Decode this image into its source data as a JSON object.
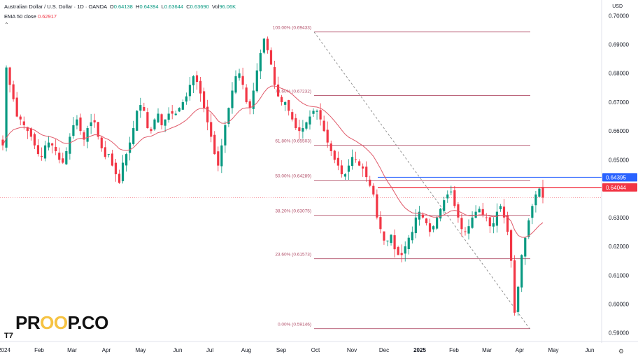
{
  "header": {
    "symbol": "Australian Dollar / U.S. Dollar · 1D · OANDA",
    "open_label": "O",
    "open": "0.64138",
    "high_label": "H",
    "high": "0.64394",
    "low_label": "L",
    "low": "0.63644",
    "close_label": "C",
    "close": "0.63690",
    "vol_label": "Vol",
    "vol": "96.06K",
    "ema_label": "EMA 50 close",
    "ema_value": "0.62917"
  },
  "currency": "USD",
  "logo": {
    "left": "PR",
    "oo": "OO",
    "right": "P.CO"
  },
  "tradingview_badge": "T7",
  "colors": {
    "up": "#089981",
    "down": "#f23645",
    "ema": "#e05a6a",
    "fib": "#b2506a",
    "resistance_red": "#f23645",
    "resistance_blue": "#2962ff"
  },
  "chart_data": {
    "type": "candlestick",
    "title": "Australian Dollar / U.S. Dollar · 1D · OANDA",
    "ylim": [
      0.5875,
      0.7025
    ],
    "y_ticks": [
      "0.70000",
      "0.69000",
      "0.68000",
      "0.67000",
      "0.66000",
      "0.65000",
      "0.64000",
      "0.63000",
      "0.62000",
      "0.61000",
      "0.60000",
      "0.59000"
    ],
    "x_labels": [
      "2024",
      "Feb",
      "Mar",
      "Apr",
      "May",
      "Jun",
      "Jul",
      "Aug",
      "Sep",
      "Oct",
      "Nov",
      "Dec",
      "2025",
      "Feb",
      "Mar",
      "Apr",
      "May",
      "Jun"
    ],
    "bold_x_labels": [
      "2025"
    ],
    "x_label_order": [
      0,
      1,
      2,
      3,
      4,
      5,
      6,
      7,
      8,
      9,
      10,
      11,
      12,
      13,
      14,
      15,
      16,
      17
    ],
    "fib_levels": [
      {
        "label": "100.00% (0.69433)",
        "value": 0.69433
      },
      {
        "label": "78.60% (0.67232)",
        "value": 0.67232
      },
      {
        "label": "61.80% (0.65503)",
        "value": 0.65503
      },
      {
        "label": "50.00% (0.64289)",
        "value": 0.64289
      },
      {
        "label": "38.20% (0.63075)",
        "value": 0.63075
      },
      {
        "label": "23.60% (0.61573)",
        "value": 0.61573
      },
      {
        "label": "0.00% (0.59146)",
        "value": 0.59146
      }
    ],
    "price_tags": [
      {
        "label": "0.64395",
        "value": 0.64395,
        "style": "blue"
      },
      {
        "label": "0.64044",
        "value": 0.64044,
        "style": "red"
      }
    ],
    "current_price_line": 0.6369,
    "swing_high": 0.69433,
    "swing_low": 0.59146,
    "candles_close_path": [
      0.655,
      0.682,
      0.676,
      0.671,
      0.665,
      0.664,
      0.662,
      0.66,
      0.658,
      0.655,
      0.652,
      0.651,
      0.655,
      0.656,
      0.655,
      0.653,
      0.65,
      0.649,
      0.653,
      0.658,
      0.662,
      0.664,
      0.66,
      0.657,
      0.661,
      0.663,
      0.663,
      0.658,
      0.654,
      0.651,
      0.652,
      0.648,
      0.645,
      0.642,
      0.649,
      0.652,
      0.656,
      0.661,
      0.667,
      0.669,
      0.667,
      0.661,
      0.66,
      0.664,
      0.666,
      0.662,
      0.664,
      0.666,
      0.666,
      0.666,
      0.668,
      0.67,
      0.672,
      0.676,
      0.679,
      0.677,
      0.673,
      0.668,
      0.663,
      0.658,
      0.652,
      0.648,
      0.655,
      0.662,
      0.668,
      0.674,
      0.679,
      0.68,
      0.676,
      0.67,
      0.668,
      0.674,
      0.681,
      0.687,
      0.692,
      0.688,
      0.683,
      0.676,
      0.672,
      0.67,
      0.67,
      0.667,
      0.664,
      0.661,
      0.66,
      0.661,
      0.663,
      0.665,
      0.667,
      0.667,
      0.664,
      0.66,
      0.656,
      0.653,
      0.65,
      0.648,
      0.645,
      0.645,
      0.648,
      0.651,
      0.65,
      0.648,
      0.647,
      0.644,
      0.641,
      0.638,
      0.63,
      0.626,
      0.622,
      0.622,
      0.624,
      0.619,
      0.617,
      0.617,
      0.62,
      0.623,
      0.625,
      0.63,
      0.632,
      0.63,
      0.628,
      0.625,
      0.627,
      0.63,
      0.633,
      0.636,
      0.638,
      0.639,
      0.634,
      0.63,
      0.626,
      0.625,
      0.627,
      0.63,
      0.632,
      0.633,
      0.631,
      0.63,
      0.627,
      0.628,
      0.632,
      0.634,
      0.63,
      0.625,
      0.615,
      0.597,
      0.606,
      0.617,
      0.623,
      0.629,
      0.634,
      0.638,
      0.64,
      0.6369
    ]
  }
}
